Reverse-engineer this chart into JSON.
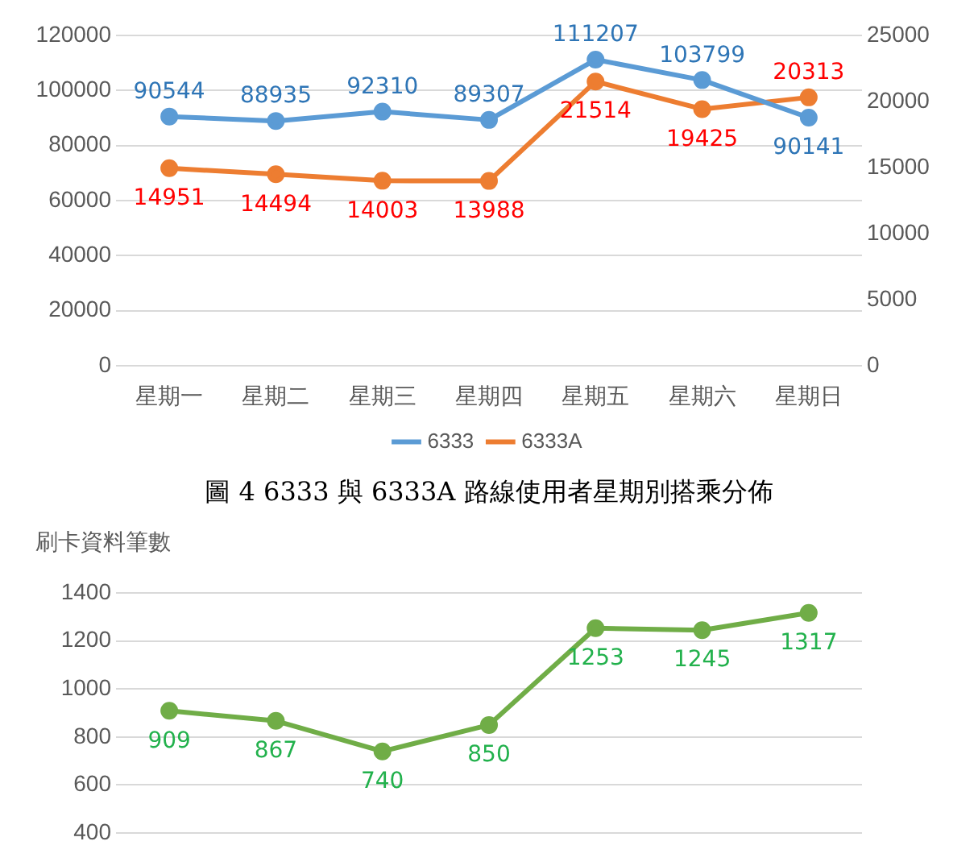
{
  "chart_data": [
    {
      "type": "line",
      "title": "圖 4 6333 與 6333A 路線使用者星期別搭乘分佈",
      "categories": [
        "星期一",
        "星期二",
        "星期三",
        "星期四",
        "星期五",
        "星期六",
        "星期日"
      ],
      "series": [
        {
          "name": "6333",
          "color": "#5b9bd5",
          "values": [
            90544,
            88935,
            92310,
            89307,
            111207,
            103799,
            90141
          ]
        },
        {
          "name": "6333A",
          "color": "#ed7d31",
          "axis": "y2",
          "values": [
            14951,
            14494,
            14003,
            13988,
            21514,
            19425,
            20313
          ]
        }
      ],
      "ylim": [
        0,
        120000
      ],
      "yticks": [
        0,
        20000,
        40000,
        60000,
        80000,
        100000,
        120000
      ],
      "y2lim": [
        0,
        25000
      ],
      "y2ticks": [
        0,
        5000,
        10000,
        15000,
        20000,
        25000
      ],
      "grid": "y",
      "legend": "bottom",
      "marker": "circle",
      "data_labels": true
    },
    {
      "type": "line",
      "ylabel": "刷卡資料筆數",
      "categories": [
        null,
        null,
        null,
        null,
        null,
        null,
        null
      ],
      "series": [
        {
          "color": "#70ad47",
          "values": [
            909,
            867,
            740,
            850,
            1253,
            1245,
            1317
          ]
        }
      ],
      "ylim": [
        400,
        1400
      ],
      "yticks": [
        400,
        600,
        800,
        1000,
        1200,
        1400
      ],
      "grid": "y",
      "marker": "circle",
      "data_labels": true,
      "tick_labels": "y"
    }
  ]
}
